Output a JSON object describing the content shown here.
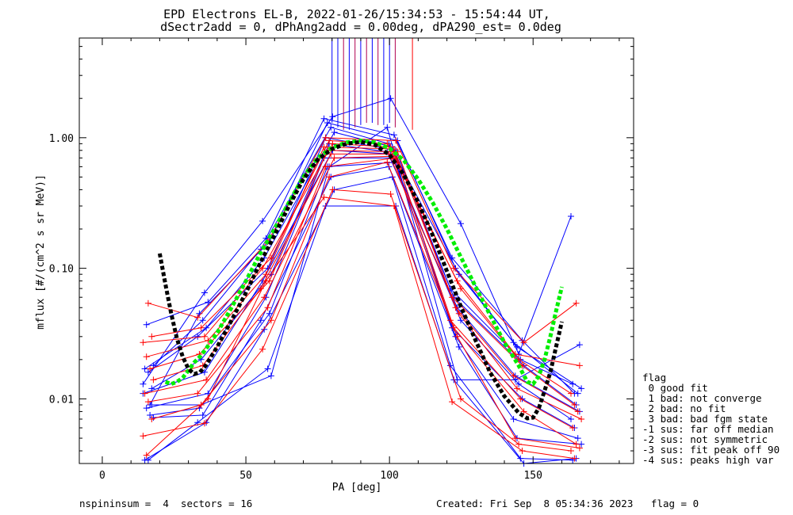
{
  "chart_data": {
    "type": "line",
    "title_line1": "EPD Electrons EL-B, 2022-01-26/15:34:53 - 15:54:44 UT,",
    "title_line2": "dSectr2add = 0, dPhAng2add = 0.00deg, dPA290_est=    0.0deg",
    "xlabel": "PA [deg]",
    "ylabel": "mflux [#/(cm^2 s sr MeV)]",
    "xlim": [
      -8,
      185
    ],
    "ylim": [
      0.0032,
      5.8
    ],
    "y_log": true,
    "x_ticks": [
      0,
      50,
      100,
      150
    ],
    "x_tick_labels": [
      "0",
      "50",
      "100",
      "150"
    ],
    "y_ticks": [
      0.01,
      0.1,
      1.0
    ],
    "y_tick_labels": [
      "0.01",
      "0.10",
      "1.00"
    ],
    "grid": false,
    "legend_position": "right",
    "legend_title": "flag",
    "legend_items": [
      " 0 good fit",
      " 1 bad: not converge",
      " 2 bad: no fit",
      " 3 bad: bad fgm state",
      "-1 sus: far off median",
      "-2 sus: not symmetric",
      "-3 sus: fit peak off 90",
      "-4 sus: peaks high var"
    ],
    "pa_bins": [
      16,
      35,
      57,
      79,
      101,
      123,
      145,
      165
    ],
    "blue_series": [
      {
        "values": [
          0.013,
          0.065,
          0.23,
          1.45,
          2.0,
          0.22,
          0.022,
          0.25
        ]
      },
      {
        "values": [
          0.037,
          0.055,
          0.17,
          1.4,
          1.05,
          0.12,
          0.028,
          0.011
        ]
      },
      {
        "values": [
          0.009,
          0.045,
          0.16,
          1.3,
          0.95,
          0.1,
          0.027,
          0.011
        ]
      },
      {
        "values": [
          0.018,
          0.04,
          0.14,
          1.2,
          0.9,
          0.09,
          0.025,
          0.012
        ]
      },
      {
        "values": [
          0.017,
          0.035,
          0.12,
          1.1,
          0.85,
          0.07,
          0.02,
          0.013
        ]
      },
      {
        "values": [
          0.016,
          0.03,
          0.1,
          1.0,
          0.8,
          0.06,
          0.018,
          0.009
        ]
      },
      {
        "values": [
          0.012,
          0.02,
          0.09,
          0.9,
          0.78,
          0.05,
          0.015,
          0.008
        ]
      },
      {
        "values": [
          0.011,
          0.016,
          0.08,
          0.8,
          0.75,
          0.04,
          0.013,
          0.007
        ]
      },
      {
        "values": [
          0.0085,
          0.011,
          0.06,
          0.7,
          0.7,
          0.035,
          0.01,
          0.006
        ]
      },
      {
        "values": [
          0.0075,
          0.0085,
          0.045,
          0.6,
          0.65,
          0.03,
          0.007,
          0.005
        ]
      },
      {
        "values": [
          0.0072,
          0.0075,
          0.04,
          0.5,
          0.6,
          0.025,
          0.005,
          0.0045
        ]
      },
      {
        "values": [
          0.0034,
          0.0066,
          0.034,
          0.4,
          0.5,
          0.018,
          0.0035,
          0.0034
        ]
      },
      {
        "values": [
          0.0034,
          0.0066,
          0.017,
          0.3,
          0.3,
          0.014,
          0.003,
          0.0035
        ]
      },
      {
        "values": [
          0.009,
          0.009,
          0.015,
          0.6,
          1.2,
          0.014,
          0.014,
          0.026
        ]
      }
    ],
    "red_series": [
      {
        "values": [
          0.054,
          0.042,
          0.16,
          1.0,
          0.95,
          0.1,
          0.027,
          0.054
        ]
      },
      {
        "values": [
          0.03,
          0.035,
          0.12,
          0.95,
          0.9,
          0.08,
          0.022,
          0.018
        ]
      },
      {
        "values": [
          0.027,
          0.03,
          0.1,
          0.9,
          0.85,
          0.07,
          0.02,
          0.011
        ]
      },
      {
        "values": [
          0.021,
          0.028,
          0.09,
          0.85,
          0.82,
          0.06,
          0.018,
          0.009
        ]
      },
      {
        "values": [
          0.017,
          0.022,
          0.08,
          0.8,
          0.78,
          0.05,
          0.015,
          0.008
        ]
      },
      {
        "values": [
          0.014,
          0.018,
          0.07,
          0.75,
          0.75,
          0.045,
          0.012,
          0.007
        ]
      },
      {
        "values": [
          0.011,
          0.014,
          0.06,
          0.7,
          0.72,
          0.04,
          0.01,
          0.006
        ]
      },
      {
        "values": [
          0.0095,
          0.011,
          0.05,
          0.6,
          0.7,
          0.035,
          0.008,
          0.0045
        ]
      },
      {
        "values": [
          0.007,
          0.009,
          0.04,
          0.5,
          0.65,
          0.03,
          0.005,
          0.0042
        ]
      },
      {
        "values": [
          0.0052,
          0.0065,
          0.024,
          0.4,
          0.37,
          0.01,
          0.0045,
          0.004
        ]
      },
      {
        "values": [
          0.0037,
          0.01,
          0.08,
          0.35,
          0.3,
          0.0095,
          0.004,
          0.0035
        ]
      }
    ],
    "black_fit": {
      "x": [
        20,
        22,
        24,
        26,
        28,
        30,
        32,
        34,
        36,
        40,
        45,
        50,
        55,
        60,
        65,
        70,
        75,
        80,
        85,
        90,
        95,
        100,
        105,
        110,
        115,
        120,
        125,
        130,
        135,
        140,
        145,
        148,
        150,
        152,
        154,
        156,
        158,
        160
      ],
      "y": [
        0.13,
        0.075,
        0.045,
        0.029,
        0.021,
        0.017,
        0.0155,
        0.016,
        0.018,
        0.025,
        0.04,
        0.065,
        0.11,
        0.18,
        0.3,
        0.48,
        0.68,
        0.82,
        0.9,
        0.93,
        0.88,
        0.74,
        0.52,
        0.32,
        0.18,
        0.095,
        0.05,
        0.028,
        0.016,
        0.0105,
        0.0078,
        0.0071,
        0.0072,
        0.0085,
        0.0115,
        0.016,
        0.025,
        0.039
      ]
    },
    "green_fit": {
      "x": [
        22,
        24,
        26,
        28,
        30,
        32,
        34,
        36,
        40,
        45,
        50,
        55,
        60,
        65,
        70,
        75,
        80,
        85,
        90,
        95,
        100,
        105,
        110,
        115,
        120,
        125,
        130,
        135,
        140,
        145,
        148,
        150,
        152,
        154,
        156,
        158,
        160
      ],
      "y": [
        0.0135,
        0.013,
        0.0135,
        0.0145,
        0.0165,
        0.019,
        0.021,
        0.024,
        0.032,
        0.05,
        0.08,
        0.13,
        0.2,
        0.32,
        0.5,
        0.7,
        0.84,
        0.92,
        0.95,
        0.92,
        0.83,
        0.67,
        0.48,
        0.32,
        0.2,
        0.12,
        0.072,
        0.044,
        0.027,
        0.018,
        0.0135,
        0.013,
        0.015,
        0.02,
        0.03,
        0.047,
        0.072
      ]
    },
    "spikes": [
      {
        "x": 80,
        "color": "#0000ff",
        "y_bottom": 1.3
      },
      {
        "x": 82,
        "color": "#0000ff",
        "y_bottom": 1.2
      },
      {
        "x": 84,
        "color": "#b00050",
        "y_bottom": 1.15
      },
      {
        "x": 86,
        "color": "#0000ff",
        "y_bottom": 1.15
      },
      {
        "x": 88,
        "color": "#b00050",
        "y_bottom": 1.2
      },
      {
        "x": 90,
        "color": "#0000ff",
        "y_bottom": 1.25
      },
      {
        "x": 92,
        "color": "#b00050",
        "y_bottom": 1.3
      },
      {
        "x": 94,
        "color": "#0000ff",
        "y_bottom": 1.3
      },
      {
        "x": 96,
        "color": "#b00050",
        "y_bottom": 1.25
      },
      {
        "x": 98,
        "color": "#0000ff",
        "y_bottom": 1.25
      },
      {
        "x": 100,
        "color": "#0000ff",
        "y_bottom": 1.3
      },
      {
        "x": 102,
        "color": "#b00050",
        "y_bottom": 1.2
      },
      {
        "x": 108,
        "color": "#ff0000",
        "y_bottom": 1.15
      }
    ],
    "colors": {
      "blue": "#0000ff",
      "red": "#ff0000",
      "black": "#000000",
      "green": "#00ee00"
    }
  },
  "footer": {
    "left": "nspininsum =  4  sectors = 16",
    "right": "Created: Fri Sep  8 05:34:36 2023   flag = 0"
  }
}
